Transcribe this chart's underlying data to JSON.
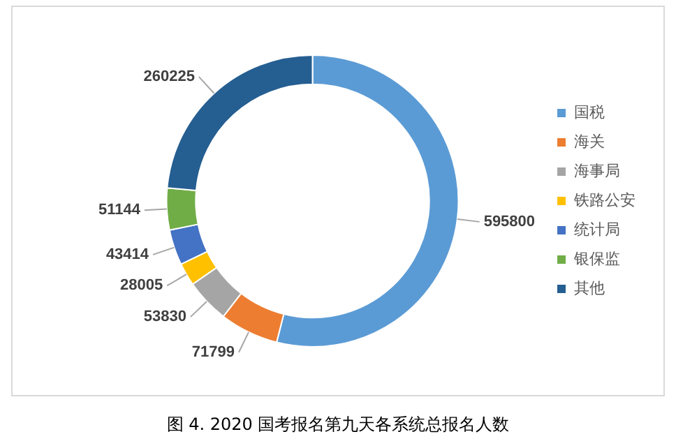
{
  "chart_data": {
    "type": "donut",
    "title": "图 4. 2020 国考报名第九天各系统总报名人数",
    "categories": [
      "国税",
      "海关",
      "海事局",
      "铁路公安",
      "统计局",
      "银保监",
      "其他"
    ],
    "values": [
      595800,
      71799,
      53830,
      28005,
      43414,
      51144,
      260225
    ],
    "colors": [
      "#5b9bd5",
      "#ed7d31",
      "#a5a5a5",
      "#ffc000",
      "#4472c4",
      "#70ad47",
      "#255e91"
    ],
    "data_labels": true,
    "legend": "right"
  }
}
